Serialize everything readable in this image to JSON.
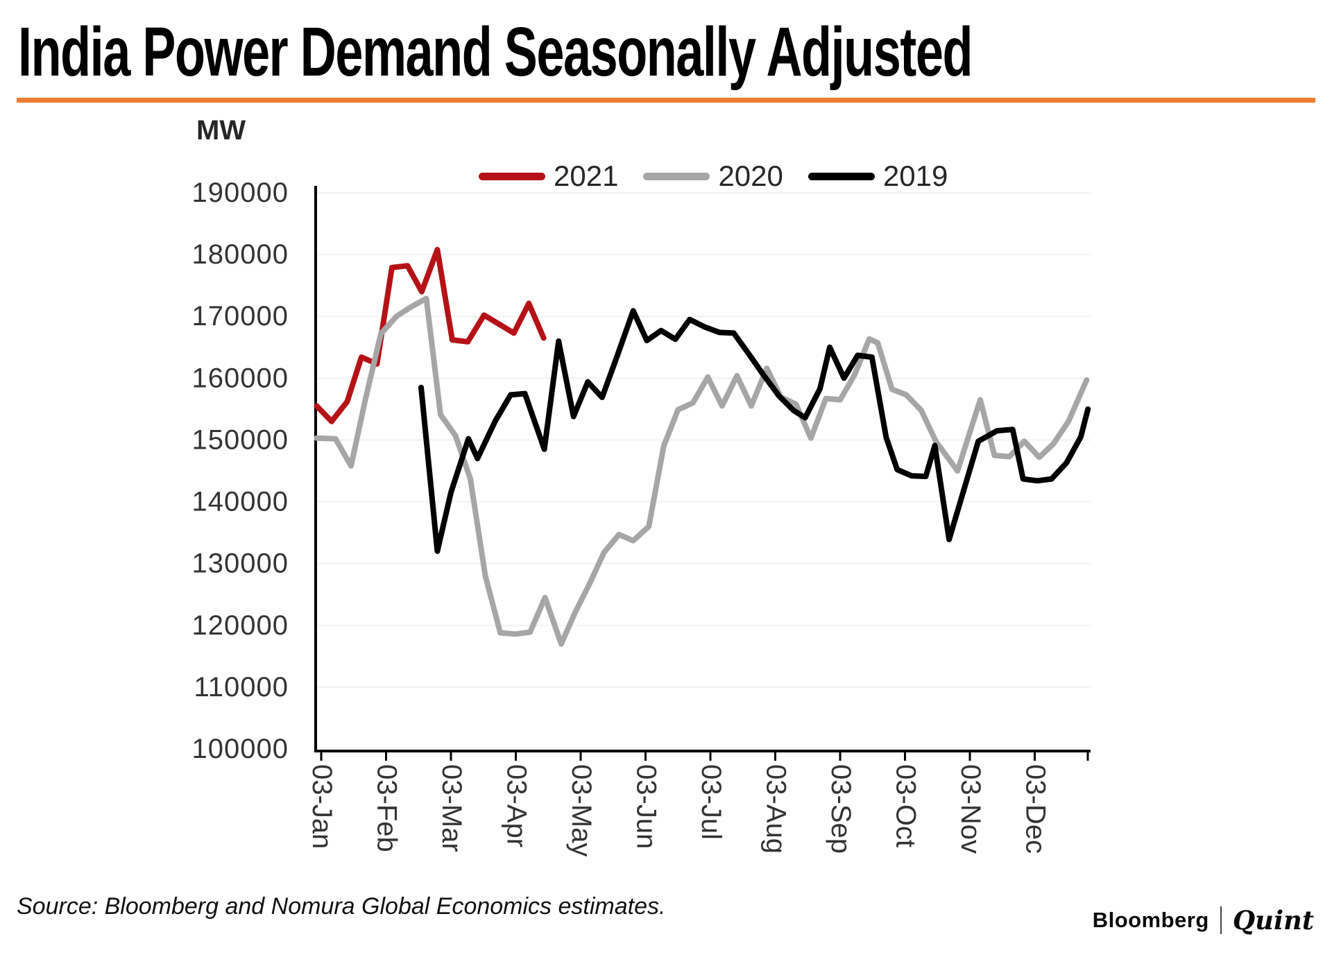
{
  "title": "India Power Demand Seasonally Adjusted",
  "accent_color": "#ED7D31",
  "unit_label": "MW",
  "legend": [
    {
      "label": "2021",
      "color": "#b51217"
    },
    {
      "label": "2020",
      "color": "#a6a6a6"
    },
    {
      "label": "2019",
      "color": "#000000"
    }
  ],
  "source_note": "Source: Bloomberg and Nomura Global Economics estimates.",
  "brand": {
    "left": "Bloomberg",
    "right": "Quint"
  },
  "chart_data": {
    "type": "line",
    "title": "India Power Demand Seasonally Adjusted",
    "ylabel": "MW",
    "ylim": [
      100000,
      190000
    ],
    "y_tick_step": 10000,
    "y_tick_labels": [
      "190000",
      "180000",
      "170000",
      "160000",
      "150000",
      "140000",
      "130000",
      "120000",
      "110000",
      "100000"
    ],
    "x_tick_labels": [
      "03-Jan",
      "03-Feb",
      "03-Mar",
      "03-Apr",
      "03-May",
      "03-Jun",
      "03-Jul",
      "03-Aug",
      "03-Sep",
      "03-Oct",
      "03-Nov",
      "03-Dec"
    ],
    "x_note": "points are weekly; x measured in months after the 03-Jan tick",
    "grid": "faint-horizontal",
    "legend_position": "top",
    "series": [
      {
        "name": "2021",
        "color": "#b51217",
        "points": [
          [
            -0.07,
            155500
          ],
          [
            0.16,
            153000
          ],
          [
            0.4,
            156200
          ],
          [
            0.62,
            163400
          ],
          [
            0.86,
            162300
          ],
          [
            1.09,
            177900
          ],
          [
            1.33,
            178200
          ],
          [
            1.55,
            174000
          ],
          [
            1.79,
            180800
          ],
          [
            2.02,
            166200
          ],
          [
            2.26,
            165900
          ],
          [
            2.51,
            170200
          ],
          [
            2.75,
            168700
          ],
          [
            2.97,
            167300
          ],
          [
            3.2,
            172100
          ],
          [
            3.43,
            166500
          ]
        ]
      },
      {
        "name": "2020",
        "color": "#a6a6a6",
        "points": [
          [
            -0.07,
            150300
          ],
          [
            0.22,
            150200
          ],
          [
            0.46,
            145800
          ],
          [
            0.68,
            156500
          ],
          [
            0.92,
            167200
          ],
          [
            1.16,
            170000
          ],
          [
            1.38,
            171500
          ],
          [
            1.62,
            172900
          ],
          [
            1.84,
            154100
          ],
          [
            2.07,
            150700
          ],
          [
            2.3,
            143700
          ],
          [
            2.53,
            128000
          ],
          [
            2.76,
            118800
          ],
          [
            2.99,
            118600
          ],
          [
            3.22,
            118900
          ],
          [
            3.45,
            124500
          ],
          [
            3.7,
            117000
          ],
          [
            3.91,
            122000
          ],
          [
            4.14,
            126800
          ],
          [
            4.36,
            131800
          ],
          [
            4.59,
            134700
          ],
          [
            4.81,
            133700
          ],
          [
            5.05,
            136000
          ],
          [
            5.28,
            149000
          ],
          [
            5.5,
            154900
          ],
          [
            5.73,
            156000
          ],
          [
            5.96,
            160200
          ],
          [
            6.18,
            155500
          ],
          [
            6.41,
            160400
          ],
          [
            6.63,
            155500
          ],
          [
            6.87,
            161600
          ],
          [
            7.09,
            156900
          ],
          [
            7.32,
            155800
          ],
          [
            7.55,
            150300
          ],
          [
            7.78,
            156700
          ],
          [
            8.0,
            156500
          ],
          [
            8.22,
            160500
          ],
          [
            8.45,
            166350
          ],
          [
            8.58,
            165700
          ],
          [
            8.8,
            158200
          ],
          [
            9.02,
            157300
          ],
          [
            9.25,
            154800
          ],
          [
            9.48,
            149700
          ],
          [
            9.81,
            145000
          ],
          [
            10.16,
            156500
          ],
          [
            10.38,
            147500
          ],
          [
            10.61,
            147300
          ],
          [
            10.84,
            149800
          ],
          [
            11.07,
            147200
          ],
          [
            11.29,
            149400
          ],
          [
            11.52,
            153000
          ],
          [
            11.8,
            159700
          ]
        ]
      },
      {
        "name": "2019",
        "color": "#000000",
        "points": [
          [
            1.54,
            158500
          ],
          [
            1.79,
            132000
          ],
          [
            2.0,
            141500
          ],
          [
            2.27,
            150200
          ],
          [
            2.41,
            147000
          ],
          [
            2.68,
            153000
          ],
          [
            2.92,
            157300
          ],
          [
            3.14,
            157500
          ],
          [
            3.44,
            148500
          ],
          [
            3.66,
            166000
          ],
          [
            3.89,
            153800
          ],
          [
            4.11,
            159400
          ],
          [
            4.33,
            156900
          ],
          [
            4.55,
            163200
          ],
          [
            4.81,
            170900
          ],
          [
            5.02,
            166100
          ],
          [
            5.24,
            167700
          ],
          [
            5.46,
            166300
          ],
          [
            5.68,
            169500
          ],
          [
            5.91,
            168300
          ],
          [
            6.14,
            167400
          ],
          [
            6.36,
            167300
          ],
          [
            6.6,
            163800
          ],
          [
            6.82,
            160500
          ],
          [
            7.06,
            157100
          ],
          [
            7.28,
            154800
          ],
          [
            7.46,
            153600
          ],
          [
            7.69,
            158300
          ],
          [
            7.84,
            165000
          ],
          [
            8.06,
            160000
          ],
          [
            8.27,
            163700
          ],
          [
            8.49,
            163400
          ],
          [
            8.71,
            150400
          ],
          [
            8.88,
            145200
          ],
          [
            9.1,
            144200
          ],
          [
            9.32,
            144100
          ],
          [
            9.46,
            149100
          ],
          [
            9.68,
            133900
          ],
          [
            10.13,
            149800
          ],
          [
            10.42,
            151500
          ],
          [
            10.66,
            151700
          ],
          [
            10.82,
            143700
          ],
          [
            11.04,
            143400
          ],
          [
            11.26,
            143700
          ],
          [
            11.49,
            146300
          ],
          [
            11.71,
            150500
          ],
          [
            11.82,
            155000
          ]
        ]
      }
    ]
  }
}
